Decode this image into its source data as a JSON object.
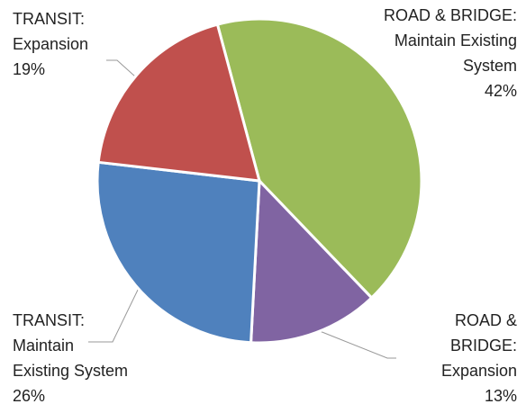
{
  "chart_data": {
    "type": "pie",
    "categories": [
      [
        "ROAD & BRIDGE:",
        "Maintain Existing",
        "System"
      ],
      [
        "ROAD &",
        "BRIDGE:",
        "Expansion"
      ],
      [
        "TRANSIT:",
        "Maintain",
        "Existing System"
      ],
      [
        "TRANSIT:",
        "Expansion"
      ]
    ],
    "values": [
      42,
      13,
      26,
      19
    ],
    "value_labels": [
      "42%",
      "13%",
      "26%",
      "19%"
    ],
    "colors": [
      "#9bbb59",
      "#8064a2",
      "#4f81bd",
      "#c0504d"
    ]
  }
}
